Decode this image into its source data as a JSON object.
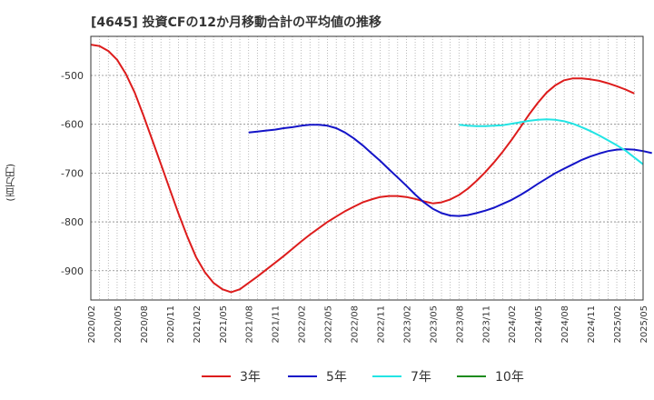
{
  "title": "[4645]  投資CFの12か月移動合計の平均値の推移",
  "ylabel": "(百万円)",
  "chart_data": {
    "type": "line",
    "title": "[4645]  投資CFの12か月移動合計の平均値の推移",
    "ylabel": "(百万円)",
    "xlabel": "",
    "ylim": [
      -960,
      -420
    ],
    "yticks": [
      -500,
      -600,
      -700,
      -800,
      -900
    ],
    "xticks": [
      "2020/02",
      "2020/05",
      "2020/08",
      "2020/11",
      "2021/02",
      "2021/05",
      "2021/08",
      "2021/11",
      "2022/02",
      "2022/05",
      "2022/08",
      "2022/11",
      "2023/02",
      "2023/05",
      "2023/08",
      "2023/11",
      "2024/02",
      "2024/05",
      "2024/08",
      "2024/11",
      "2025/02",
      "2025/05"
    ],
    "grid": true,
    "legend_position": "bottom",
    "series": [
      {
        "name": "3年",
        "color": "#dd1c1c",
        "points": [
          [
            "2020/02",
            -437
          ],
          [
            "2020/03",
            -440
          ],
          [
            "2020/04",
            -450
          ],
          [
            "2020/05",
            -468
          ],
          [
            "2020/06",
            -497
          ],
          [
            "2020/07",
            -535
          ],
          [
            "2020/08",
            -582
          ],
          [
            "2020/09",
            -632
          ],
          [
            "2020/10",
            -682
          ],
          [
            "2020/11",
            -733
          ],
          [
            "2020/12",
            -783
          ],
          [
            "2021/01",
            -830
          ],
          [
            "2021/02",
            -872
          ],
          [
            "2021/03",
            -903
          ],
          [
            "2021/04",
            -925
          ],
          [
            "2021/05",
            -938
          ],
          [
            "2021/06",
            -944
          ],
          [
            "2021/07",
            -938
          ],
          [
            "2021/08",
            -925
          ],
          [
            "2021/09",
            -912
          ],
          [
            "2021/10",
            -898
          ],
          [
            "2021/11",
            -884
          ],
          [
            "2021/12",
            -870
          ],
          [
            "2022/01",
            -855
          ],
          [
            "2022/02",
            -840
          ],
          [
            "2022/03",
            -826
          ],
          [
            "2022/04",
            -813
          ],
          [
            "2022/05",
            -800
          ],
          [
            "2022/06",
            -789
          ],
          [
            "2022/07",
            -778
          ],
          [
            "2022/08",
            -769
          ],
          [
            "2022/09",
            -760
          ],
          [
            "2022/10",
            -754
          ],
          [
            "2022/11",
            -749
          ],
          [
            "2022/12",
            -747
          ],
          [
            "2023/01",
            -747
          ],
          [
            "2023/02",
            -749
          ],
          [
            "2023/03",
            -753
          ],
          [
            "2023/04",
            -758
          ],
          [
            "2023/05",
            -762
          ],
          [
            "2023/06",
            -760
          ],
          [
            "2023/07",
            -754
          ],
          [
            "2023/08",
            -745
          ],
          [
            "2023/09",
            -732
          ],
          [
            "2023/10",
            -716
          ],
          [
            "2023/11",
            -698
          ],
          [
            "2023/12",
            -678
          ],
          [
            "2024/01",
            -656
          ],
          [
            "2024/02",
            -632
          ],
          [
            "2024/03",
            -606
          ],
          [
            "2024/04",
            -580
          ],
          [
            "2024/05",
            -556
          ],
          [
            "2024/06",
            -535
          ],
          [
            "2024/07",
            -520
          ],
          [
            "2024/08",
            -510
          ],
          [
            "2024/09",
            -506
          ],
          [
            "2024/10",
            -506
          ],
          [
            "2024/11",
            -508
          ],
          [
            "2024/12",
            -511
          ],
          [
            "2025/01",
            -516
          ],
          [
            "2025/02",
            -522
          ],
          [
            "2025/03",
            -529
          ],
          [
            "2025/04",
            -537
          ]
        ]
      },
      {
        "name": "5年",
        "color": "#1414c8",
        "points": [
          [
            "2021/08",
            -617
          ],
          [
            "2021/09",
            -615
          ],
          [
            "2021/10",
            -613
          ],
          [
            "2021/11",
            -611
          ],
          [
            "2021/12",
            -608
          ],
          [
            "2022/01",
            -606
          ],
          [
            "2022/02",
            -603
          ],
          [
            "2022/03",
            -601
          ],
          [
            "2022/04",
            -601
          ],
          [
            "2022/05",
            -603
          ],
          [
            "2022/06",
            -608
          ],
          [
            "2022/07",
            -617
          ],
          [
            "2022/08",
            -629
          ],
          [
            "2022/09",
            -643
          ],
          [
            "2022/10",
            -659
          ],
          [
            "2022/11",
            -675
          ],
          [
            "2022/12",
            -692
          ],
          [
            "2023/01",
            -709
          ],
          [
            "2023/02",
            -726
          ],
          [
            "2023/03",
            -744
          ],
          [
            "2023/04",
            -760
          ],
          [
            "2023/05",
            -773
          ],
          [
            "2023/06",
            -782
          ],
          [
            "2023/07",
            -787
          ],
          [
            "2023/08",
            -788
          ],
          [
            "2023/09",
            -786
          ],
          [
            "2023/10",
            -782
          ],
          [
            "2023/11",
            -777
          ],
          [
            "2023/12",
            -771
          ],
          [
            "2024/01",
            -763
          ],
          [
            "2024/02",
            -755
          ],
          [
            "2024/03",
            -745
          ],
          [
            "2024/04",
            -734
          ],
          [
            "2024/05",
            -722
          ],
          [
            "2024/06",
            -711
          ],
          [
            "2024/07",
            -700
          ],
          [
            "2024/08",
            -691
          ],
          [
            "2024/09",
            -682
          ],
          [
            "2024/10",
            -673
          ],
          [
            "2024/11",
            -666
          ],
          [
            "2024/12",
            -660
          ],
          [
            "2025/01",
            -655
          ],
          [
            "2025/02",
            -652
          ],
          [
            "2025/03",
            -651
          ],
          [
            "2025/04",
            -652
          ],
          [
            "2025/05",
            -655
          ],
          [
            "2025/06",
            -659
          ]
        ]
      },
      {
        "name": "7年",
        "color": "#22e4e4",
        "points": [
          [
            "2023/08",
            -601
          ],
          [
            "2023/09",
            -603
          ],
          [
            "2023/10",
            -604
          ],
          [
            "2023/11",
            -604
          ],
          [
            "2023/12",
            -603
          ],
          [
            "2024/01",
            -602
          ],
          [
            "2024/02",
            -599
          ],
          [
            "2024/03",
            -596
          ],
          [
            "2024/04",
            -593
          ],
          [
            "2024/05",
            -591
          ],
          [
            "2024/06",
            -590
          ],
          [
            "2024/07",
            -591
          ],
          [
            "2024/08",
            -594
          ],
          [
            "2024/09",
            -599
          ],
          [
            "2024/10",
            -606
          ],
          [
            "2024/11",
            -614
          ],
          [
            "2024/12",
            -623
          ],
          [
            "2025/01",
            -633
          ],
          [
            "2025/02",
            -643
          ],
          [
            "2025/03",
            -654
          ],
          [
            "2025/04",
            -668
          ],
          [
            "2025/05",
            -682
          ]
        ]
      },
      {
        "name": "10年",
        "color": "#1e8c1e",
        "points": []
      }
    ]
  }
}
